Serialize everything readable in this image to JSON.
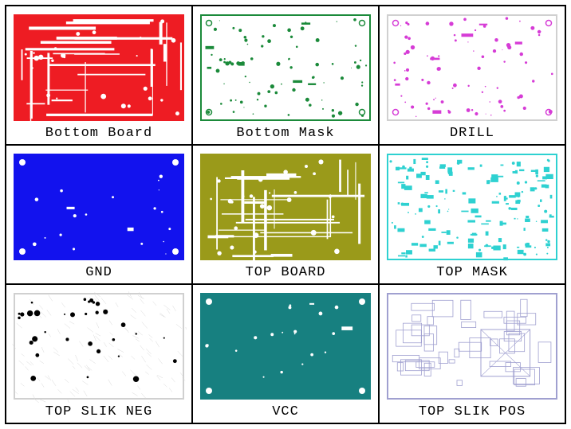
{
  "grid": {
    "rows": 3,
    "cols": 3,
    "border_color": "#000000",
    "background_color": "#ffffff",
    "caption_fontsize": 17,
    "caption_color": "#000000"
  },
  "cells": [
    {
      "label": "Bottom Board",
      "style": "filled-traces",
      "fill_color": "#ee1c23",
      "trace_color": "#ffffff",
      "outline_color": "#ee1c23",
      "density": "high"
    },
    {
      "label": "Bottom Mask",
      "style": "sparse-dots",
      "fill_color": "#ffffff",
      "trace_color": "#1b8a3a",
      "outline_color": "#1b8a3a",
      "density": "medium"
    },
    {
      "label": "DRILL",
      "style": "sparse-dots",
      "fill_color": "#ffffff",
      "trace_color": "#d63cd6",
      "outline_color": "#d0d0d0",
      "density": "medium"
    },
    {
      "label": "GND",
      "style": "filled-plane",
      "fill_color": "#1212ee",
      "trace_color": "#ffffff",
      "outline_color": "#1212ee",
      "density": "low"
    },
    {
      "label": "TOP BOARD",
      "style": "filled-traces",
      "fill_color": "#9a9a1a",
      "trace_color": "#ffffff",
      "outline_color": "#9a9a1a",
      "density": "high"
    },
    {
      "label": "TOP MASK",
      "style": "sparse-blocks",
      "fill_color": "#ffffff",
      "trace_color": "#2ed1d1",
      "outline_color": "#2ed1d1",
      "density": "high"
    },
    {
      "label": "TOP SLIK NEG",
      "style": "scatter",
      "fill_color": "#ffffff",
      "trace_color": "#000000",
      "outline_color": "#d0d0d0",
      "density": "low"
    },
    {
      "label": "VCC",
      "style": "filled-plane",
      "fill_color": "#178080",
      "trace_color": "#ffffff",
      "outline_color": "#178080",
      "density": "low"
    },
    {
      "label": "TOP SLIK POS",
      "style": "outline-components",
      "fill_color": "#ffffff",
      "trace_color": "#a0a0d0",
      "outline_color": "#a0a0d0",
      "density": "high"
    }
  ]
}
